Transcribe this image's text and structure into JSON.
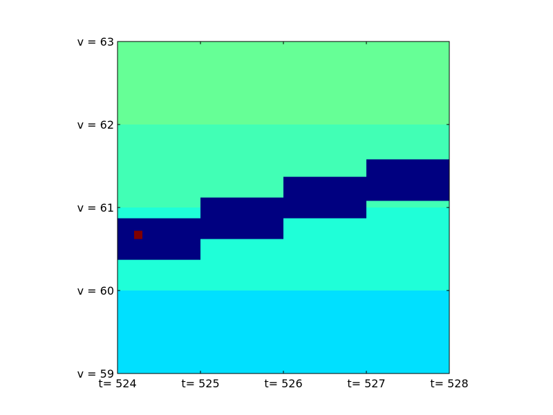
{
  "chart_data": {
    "type": "heatmap",
    "title": "",
    "xlabel": "",
    "ylabel": "",
    "xlim": [
      524,
      528
    ],
    "ylim": [
      59,
      63
    ],
    "grid": false,
    "xticks": [
      {
        "value": 524,
        "label": "t= 524"
      },
      {
        "value": 525,
        "label": "t= 525"
      },
      {
        "value": 526,
        "label": "t= 526"
      },
      {
        "value": 527,
        "label": "t= 527"
      },
      {
        "value": 528,
        "label": "t= 528"
      }
    ],
    "yticks": [
      {
        "value": 59,
        "label": "v = 59"
      },
      {
        "value": 60,
        "label": "v = 60"
      },
      {
        "value": 61,
        "label": "v = 61"
      },
      {
        "value": 62,
        "label": "v = 62"
      },
      {
        "value": 63,
        "label": "v = 63"
      }
    ],
    "bands": [
      {
        "v_from": 62,
        "v_to": 63,
        "color": "#66ff96"
      },
      {
        "v_from": 61,
        "v_to": 62,
        "color": "#41ffb5"
      },
      {
        "v_from": 60,
        "v_to": 61,
        "color": "#1fffd8"
      },
      {
        "v_from": 59,
        "v_to": 60,
        "color": "#00e0ff"
      }
    ],
    "track": {
      "color": "#000080",
      "segments": [
        {
          "t_from": 524,
          "t_to": 525,
          "v_low": 60.37,
          "v_high": 60.87
        },
        {
          "t_from": 525,
          "t_to": 526,
          "v_low": 60.62,
          "v_high": 61.12
        },
        {
          "t_from": 526,
          "t_to": 527,
          "v_low": 60.87,
          "v_high": 61.37
        },
        {
          "t_from": 527,
          "t_to": 528,
          "v_low": 61.08,
          "v_high": 61.58
        }
      ]
    },
    "marker": {
      "t": 524.25,
      "v": 60.67,
      "color": "#7f0000"
    }
  }
}
